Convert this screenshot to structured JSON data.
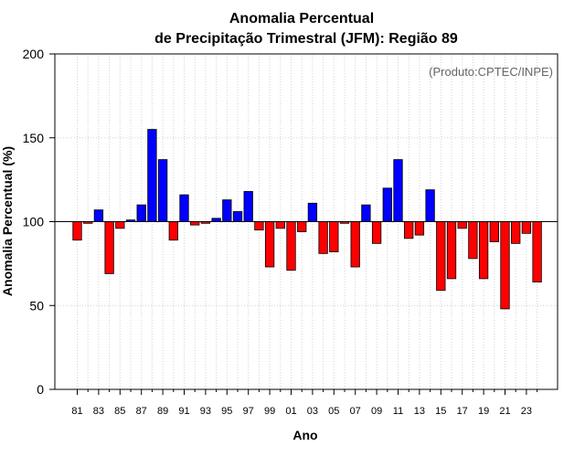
{
  "chart_data": {
    "type": "bar",
    "title_line1": "Anomalia Percentual",
    "title_line2": "de Precipitação Trimestral (JFM): Região 89",
    "xlabel": "Ano",
    "ylabel": "Anomalia Percentual (%)",
    "credit": "(Produto:CPTEC/INPE)",
    "ylim": [
      0,
      200
    ],
    "yticks": [
      "0",
      "50",
      "100",
      "150",
      "200"
    ],
    "baseline": 100,
    "grid": true,
    "x_tick_labels": [
      "81",
      "83",
      "85",
      "87",
      "89",
      "91",
      "93",
      "95",
      "97",
      "99",
      "01",
      "03",
      "05",
      "07",
      "09",
      "11",
      "13",
      "15",
      "17",
      "19",
      "21",
      "23"
    ],
    "categories": [
      "1981",
      "1982",
      "1983",
      "1984",
      "1985",
      "1986",
      "1987",
      "1988",
      "1989",
      "1990",
      "1991",
      "1992",
      "1993",
      "1994",
      "1995",
      "1996",
      "1997",
      "1998",
      "1999",
      "2000",
      "2001",
      "2002",
      "2003",
      "2004",
      "2005",
      "2006",
      "2007",
      "2008",
      "2009",
      "2010",
      "2011",
      "2012",
      "2013",
      "2014",
      "2015",
      "2016",
      "2017",
      "2018",
      "2019",
      "2020",
      "2021",
      "2022",
      "2023",
      "2024"
    ],
    "values": [
      89,
      99,
      107,
      69,
      96,
      101,
      110,
      155,
      137,
      89,
      116,
      98,
      99,
      102,
      113,
      106,
      118,
      95,
      73,
      96,
      71,
      94,
      111,
      81,
      82,
      99,
      73,
      110,
      87,
      120,
      137,
      90,
      92,
      119,
      59,
      66,
      96,
      78,
      66,
      88,
      48,
      87,
      93,
      64
    ],
    "colors": {
      "above": "#0000ff",
      "below": "#ff0000",
      "edge": "#000000",
      "grid": "#d3d3d3"
    }
  }
}
